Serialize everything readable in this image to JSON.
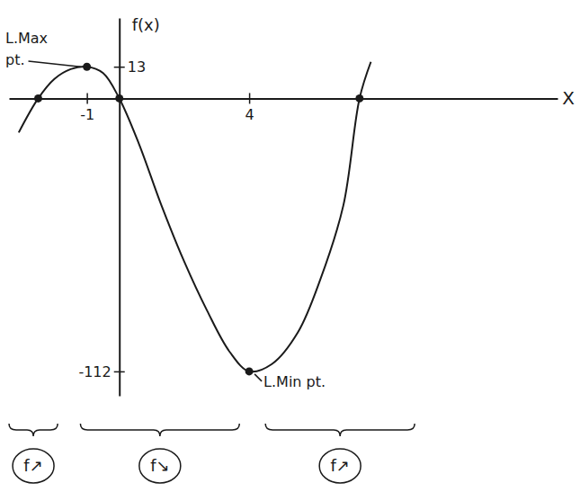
{
  "chart_data": {
    "type": "line",
    "x_label": "X",
    "y_label": "f(x)",
    "xlim": [
      -3.4,
      13.5
    ],
    "ylim": [
      -122,
      33
    ],
    "xticks": [
      -1,
      4
    ],
    "yticks": [
      -112,
      13
    ],
    "grid": false,
    "series": [
      {
        "type": "line",
        "color": "#1a1a1a",
        "line_style": "solid",
        "x": [
          -3.1,
          -2.5,
          -2.0,
          -1.5,
          -1.0,
          -0.5,
          0,
          0.6,
          1.3,
          2.0,
          2.7,
          3.4,
          4.0,
          4.7,
          5.5,
          6.2,
          6.9,
          7.4,
          7.75
        ],
        "values": [
          -14,
          0,
          8,
          12,
          13,
          10.4,
          0,
          -18.5,
          -44,
          -67,
          -87,
          -104,
          -112,
          -109,
          -96,
          -74,
          -44,
          0,
          15
        ]
      },
      {
        "type": "scatter",
        "color": "#1a1a1a",
        "marker": "circle",
        "x": [
          -2.5,
          -1,
          0,
          4,
          7.4
        ],
        "values": [
          0,
          13,
          0,
          -112,
          0
        ]
      }
    ],
    "annotations": [
      {
        "text": "L.Max pt.",
        "x": -1,
        "y": 13
      },
      {
        "text": "L.Min pt.",
        "x": 4,
        "y": -112
      }
    ],
    "intervals": [
      {
        "label": "f↗",
        "from": -3.4,
        "to": -1.9
      },
      {
        "label": "f↘",
        "from": -1.2,
        "to": 3.7
      },
      {
        "label": "f↗",
        "from": 4.5,
        "to": 9.1
      }
    ]
  }
}
